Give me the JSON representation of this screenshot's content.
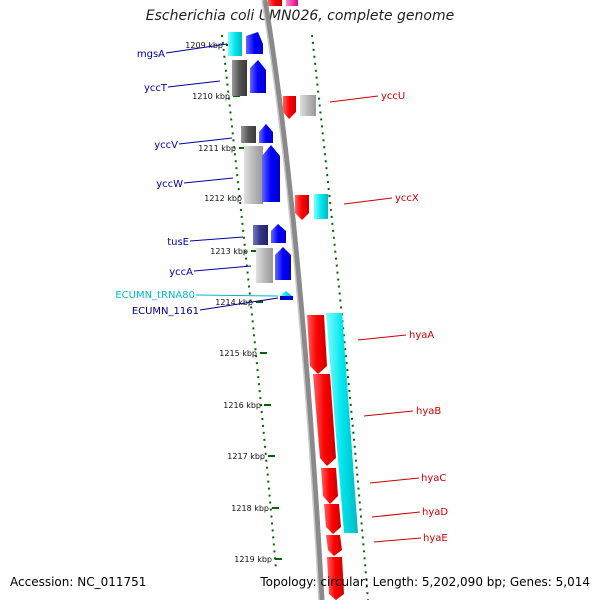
{
  "title": "Escherichia coli UMN026, complete genome",
  "footer": {
    "accession": "Accession: NC_011751",
    "summary": "Topology: circular; Length: 5,202,090 bp; Genes: 5,014"
  },
  "colors": {
    "forward_gene": "#0000ff",
    "reverse_gene": "#ff0000",
    "trna": "#00d8e0",
    "tick": "#006600",
    "backbone": "#8a8a8a"
  },
  "ticks": [
    {
      "label": "1209 kbp"
    },
    {
      "label": "1210 kbp"
    },
    {
      "label": "1211 kbp"
    },
    {
      "label": "1212 kbp"
    },
    {
      "label": "1213 kbp"
    },
    {
      "label": "1214 kbp"
    },
    {
      "label": "1215 kbp"
    },
    {
      "label": "1216 kbp"
    },
    {
      "label": "1217 kbp"
    },
    {
      "label": "1218 kbp"
    },
    {
      "label": "1219 kbp"
    }
  ],
  "genes_left": [
    {
      "name": "mgsA"
    },
    {
      "name": "yccT"
    },
    {
      "name": "yccV"
    },
    {
      "name": "yccW"
    },
    {
      "name": "tusE"
    },
    {
      "name": "yccA"
    },
    {
      "name": "ECUMN_tRNA80"
    },
    {
      "name": "ECUMN_1161"
    }
  ],
  "genes_right": [
    {
      "name": "yccU"
    },
    {
      "name": "yccX"
    },
    {
      "name": "hyaA"
    },
    {
      "name": "hyaB"
    },
    {
      "name": "hyaC"
    },
    {
      "name": "hyaD"
    },
    {
      "name": "hyaE"
    }
  ]
}
